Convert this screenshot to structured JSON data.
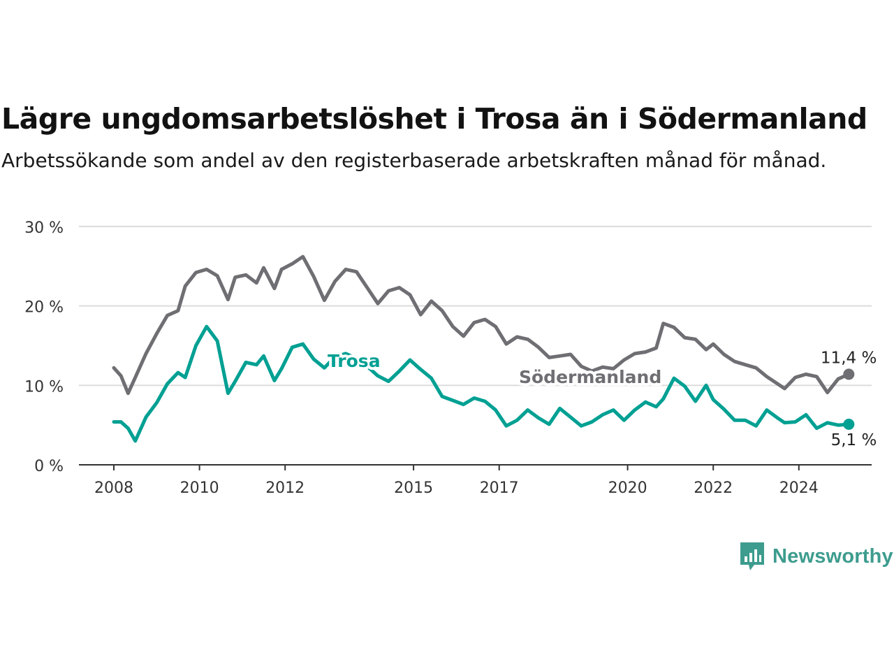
{
  "title": "Lägre ungdomsarbetslöshet i Trosa än i Södermanland",
  "subtitle": "Arbetssökande som andel av den registerbaserade arbetskraften månad för månad.",
  "brand": {
    "name": "Newsworthy",
    "icon": "bar-chart-speech-bubble-icon",
    "color": "#3d9c8e"
  },
  "chart_data": {
    "type": "line",
    "xlabel": "",
    "ylabel": "",
    "ylim": [
      0,
      30
    ],
    "y_ticks": [
      0,
      10,
      20,
      30
    ],
    "y_tick_labels": [
      "0 %",
      "10 %",
      "20 %",
      "30 %"
    ],
    "x_ticks": [
      2008,
      2010,
      2012,
      2015,
      2017,
      2020,
      2022,
      2024
    ],
    "x_tick_labels": [
      "2008",
      "2010",
      "2012",
      "2015",
      "2017",
      "2020",
      "2022",
      "2024"
    ],
    "grid": true,
    "legend": "inline labels on lines",
    "series": [
      {
        "name": "Södermanland",
        "color": "#6e6e73",
        "end_label": "11,4 %",
        "points": [
          [
            "2008-01",
            12.2
          ],
          [
            "2008-03",
            11.2
          ],
          [
            "2008-05",
            9.0
          ],
          [
            "2008-07",
            11.0
          ],
          [
            "2008-10",
            14.0
          ],
          [
            "2009-01",
            16.5
          ],
          [
            "2009-04",
            18.8
          ],
          [
            "2009-07",
            19.4
          ],
          [
            "2009-09",
            22.5
          ],
          [
            "2009-12",
            24.2
          ],
          [
            "2010-03",
            24.6
          ],
          [
            "2010-06",
            23.8
          ],
          [
            "2010-09",
            20.8
          ],
          [
            "2010-11",
            23.6
          ],
          [
            "2011-02",
            23.9
          ],
          [
            "2011-05",
            22.9
          ],
          [
            "2011-07",
            24.8
          ],
          [
            "2011-10",
            22.2
          ],
          [
            "2011-12",
            24.6
          ],
          [
            "2012-03",
            25.3
          ],
          [
            "2012-06",
            26.2
          ],
          [
            "2012-09",
            23.7
          ],
          [
            "2012-12",
            20.7
          ],
          [
            "2013-03",
            23.1
          ],
          [
            "2013-06",
            24.6
          ],
          [
            "2013-09",
            24.3
          ],
          [
            "2013-12",
            22.3
          ],
          [
            "2014-03",
            20.3
          ],
          [
            "2014-06",
            21.9
          ],
          [
            "2014-09",
            22.3
          ],
          [
            "2014-12",
            21.4
          ],
          [
            "2015-03",
            18.9
          ],
          [
            "2015-06",
            20.6
          ],
          [
            "2015-09",
            19.4
          ],
          [
            "2015-12",
            17.4
          ],
          [
            "2016-03",
            16.2
          ],
          [
            "2016-06",
            17.9
          ],
          [
            "2016-09",
            18.3
          ],
          [
            "2016-12",
            17.4
          ],
          [
            "2017-03",
            15.2
          ],
          [
            "2017-06",
            16.1
          ],
          [
            "2017-09",
            15.8
          ],
          [
            "2017-12",
            14.8
          ],
          [
            "2018-03",
            13.5
          ],
          [
            "2018-06",
            13.7
          ],
          [
            "2018-09",
            13.9
          ],
          [
            "2018-12",
            12.4
          ],
          [
            "2019-03",
            11.8
          ],
          [
            "2019-06",
            12.3
          ],
          [
            "2019-09",
            12.1
          ],
          [
            "2019-12",
            13.2
          ],
          [
            "2020-03",
            14.0
          ],
          [
            "2020-06",
            14.2
          ],
          [
            "2020-09",
            14.7
          ],
          [
            "2020-11",
            17.8
          ],
          [
            "2021-02",
            17.3
          ],
          [
            "2021-05",
            16.0
          ],
          [
            "2021-08",
            15.8
          ],
          [
            "2021-11",
            14.5
          ],
          [
            "2022-01",
            15.2
          ],
          [
            "2022-04",
            13.9
          ],
          [
            "2022-07",
            13.0
          ],
          [
            "2022-10",
            12.6
          ],
          [
            "2023-01",
            12.2
          ],
          [
            "2023-04",
            11.1
          ],
          [
            "2023-07",
            10.2
          ],
          [
            "2023-09",
            9.6
          ],
          [
            "2023-12",
            11.0
          ],
          [
            "2024-03",
            11.4
          ],
          [
            "2024-06",
            11.1
          ],
          [
            "2024-09",
            9.1
          ],
          [
            "2024-12",
            10.8
          ],
          [
            "2025-03",
            11.4
          ]
        ]
      },
      {
        "name": "Trosa",
        "color": "#00a093",
        "end_label": "5,1 %",
        "points": [
          [
            "2008-01",
            5.4
          ],
          [
            "2008-03",
            5.4
          ],
          [
            "2008-05",
            4.6
          ],
          [
            "2008-07",
            3.0
          ],
          [
            "2008-10",
            6.0
          ],
          [
            "2009-01",
            7.8
          ],
          [
            "2009-04",
            10.2
          ],
          [
            "2009-07",
            11.6
          ],
          [
            "2009-09",
            11.0
          ],
          [
            "2009-12",
            15.0
          ],
          [
            "2010-03",
            17.4
          ],
          [
            "2010-06",
            15.6
          ],
          [
            "2010-09",
            9.0
          ],
          [
            "2010-11",
            10.5
          ],
          [
            "2011-02",
            12.9
          ],
          [
            "2011-05",
            12.6
          ],
          [
            "2011-07",
            13.7
          ],
          [
            "2011-10",
            10.6
          ],
          [
            "2011-12",
            12.1
          ],
          [
            "2012-03",
            14.8
          ],
          [
            "2012-06",
            15.2
          ],
          [
            "2012-09",
            13.3
          ],
          [
            "2012-12",
            12.2
          ],
          [
            "2013-03",
            13.6
          ],
          [
            "2013-06",
            14.0
          ],
          [
            "2013-09",
            13.4
          ],
          [
            "2013-12",
            12.4
          ],
          [
            "2014-03",
            11.2
          ],
          [
            "2014-06",
            10.5
          ],
          [
            "2014-09",
            11.8
          ],
          [
            "2014-12",
            13.2
          ],
          [
            "2015-03",
            12.0
          ],
          [
            "2015-06",
            10.9
          ],
          [
            "2015-09",
            8.6
          ],
          [
            "2015-12",
            8.1
          ],
          [
            "2016-03",
            7.6
          ],
          [
            "2016-06",
            8.4
          ],
          [
            "2016-09",
            8.0
          ],
          [
            "2016-12",
            6.9
          ],
          [
            "2017-03",
            4.9
          ],
          [
            "2017-06",
            5.6
          ],
          [
            "2017-09",
            6.9
          ],
          [
            "2017-12",
            5.9
          ],
          [
            "2018-03",
            5.1
          ],
          [
            "2018-06",
            7.1
          ],
          [
            "2018-09",
            6.0
          ],
          [
            "2018-12",
            4.9
          ],
          [
            "2019-03",
            5.4
          ],
          [
            "2019-06",
            6.3
          ],
          [
            "2019-09",
            6.9
          ],
          [
            "2019-12",
            5.6
          ],
          [
            "2020-03",
            6.9
          ],
          [
            "2020-06",
            7.9
          ],
          [
            "2020-09",
            7.3
          ],
          [
            "2020-11",
            8.3
          ],
          [
            "2021-02",
            10.9
          ],
          [
            "2021-05",
            9.9
          ],
          [
            "2021-08",
            8.0
          ],
          [
            "2021-11",
            10.0
          ],
          [
            "2022-01",
            8.2
          ],
          [
            "2022-04",
            7.0
          ],
          [
            "2022-07",
            5.6
          ],
          [
            "2022-10",
            5.6
          ],
          [
            "2023-01",
            4.9
          ],
          [
            "2023-04",
            6.9
          ],
          [
            "2023-07",
            5.9
          ],
          [
            "2023-09",
            5.3
          ],
          [
            "2023-12",
            5.4
          ],
          [
            "2024-03",
            6.3
          ],
          [
            "2024-06",
            4.6
          ],
          [
            "2024-09",
            5.3
          ],
          [
            "2024-12",
            5.0
          ],
          [
            "2025-03",
            5.1
          ]
        ]
      }
    ]
  }
}
